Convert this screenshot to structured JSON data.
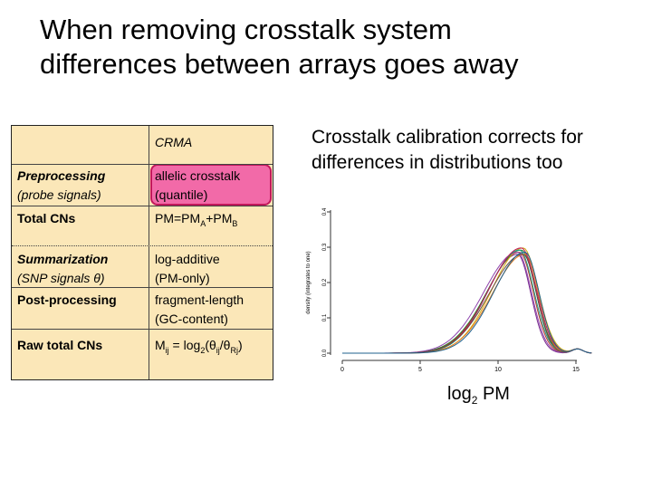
{
  "slide": {
    "title_line1": "When removing crosstalk system",
    "title_line2": "differences between arrays goes away",
    "calibration_text_line1": "Crosstalk calibration corrects for",
    "calibration_text_line2": "differences in distributions too"
  },
  "table": {
    "header": "CRMA",
    "rows": [
      {
        "label": "Preprocessing",
        "label2": "(probe signals)",
        "value": "allelic crosstalk",
        "value2": "(quantile)"
      },
      {
        "label": "Total CNs",
        "value": "PM=PM",
        "sub1": "A",
        "mid": "+PM",
        "sub2": "B"
      },
      {
        "label": "Summarization",
        "label2": "(SNP signals θ)",
        "value": "log-additive",
        "value2": "(PM-only)"
      },
      {
        "label": "Post-processing",
        "value": "fragment-length",
        "value2": "(GC-content)"
      },
      {
        "label": "Raw total CNs",
        "value_a": "M",
        "value_sub_a": "ij",
        "value_b": " = log",
        "value_sub_b": "2",
        "value_c": "(θ",
        "value_sub_c": "ij",
        "value_d": "/θ",
        "value_sub_d": "Rj",
        "value_e": ")"
      }
    ]
  },
  "density_plot": {
    "ylabel": "density (integrates to one)",
    "yticks": [
      "0.0",
      "0.1",
      "0.2",
      "0.3",
      "0.4"
    ],
    "xticks": [
      "0",
      "5",
      "10",
      "15"
    ],
    "xlabel_main": "log",
    "xlabel_sub": "2",
    "xlabel_tail": " PM",
    "series_colors": [
      "#7b2d8e",
      "#c0392b",
      "#2e7d32",
      "#d4ac0d",
      "#e67e22",
      "#8e44ad",
      "#16a085",
      "#c2185b",
      "#6d4c41",
      "#1f618d"
    ]
  }
}
